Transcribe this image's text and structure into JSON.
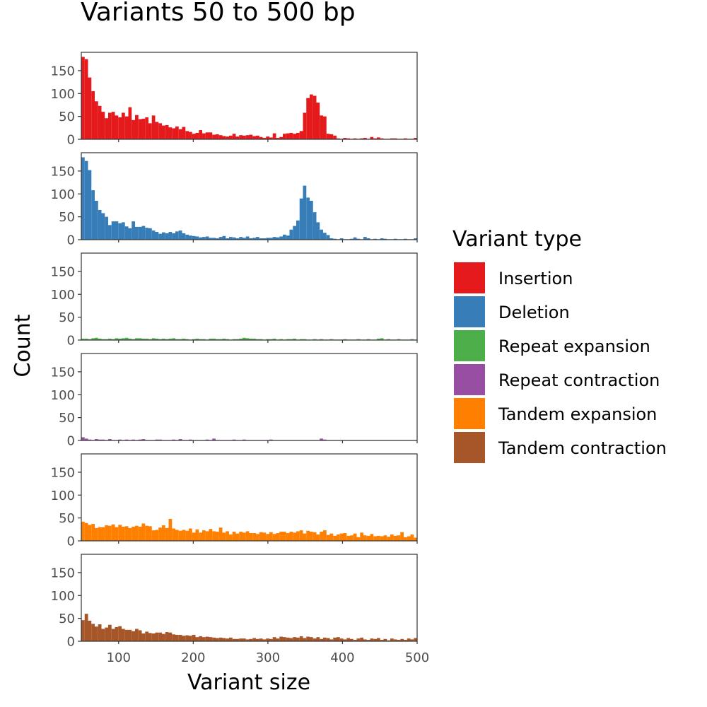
{
  "chart_data": {
    "type": "bar",
    "title": "Variants 50 to 500 bp",
    "xlabel": "Variant size",
    "ylabel": "Count",
    "xlim": [
      50,
      500
    ],
    "ylim": [
      0,
      190
    ],
    "x_ticks": [
      100,
      200,
      300,
      400,
      500
    ],
    "y_ticks": [
      0,
      50,
      100,
      150
    ],
    "bin_start": 50,
    "bin_width": 4.5,
    "legend": {
      "title": "Variant type",
      "position": "right"
    },
    "grid": false,
    "series": [
      {
        "name": "Insertion",
        "color": "#E41A1C",
        "values": [
          180,
          175,
          135,
          105,
          83,
          73,
          60,
          46,
          58,
          60,
          52,
          48,
          58,
          50,
          70,
          42,
          53,
          44,
          45,
          48,
          35,
          52,
          38,
          35,
          30,
          31,
          26,
          24,
          28,
          22,
          27,
          18,
          16,
          12,
          14,
          20,
          13,
          15,
          15,
          10,
          11,
          9,
          7,
          6,
          8,
          12,
          6,
          9,
          8,
          9,
          10,
          7,
          8,
          5,
          3,
          6,
          4,
          13,
          3,
          5,
          12,
          13,
          14,
          12,
          14,
          18,
          58,
          90,
          98,
          95,
          80,
          52,
          50,
          12,
          11,
          8,
          2,
          1,
          3,
          2,
          1,
          2,
          1,
          2,
          3,
          1,
          5,
          2,
          4,
          2,
          1,
          1,
          2,
          2,
          1,
          1,
          2,
          1,
          1,
          3,
          2,
          1
        ]
      },
      {
        "name": "Deletion",
        "color": "#377EB8",
        "values": [
          180,
          172,
          152,
          108,
          85,
          65,
          58,
          50,
          32,
          40,
          40,
          36,
          38,
          29,
          25,
          40,
          28,
          28,
          30,
          26,
          25,
          20,
          17,
          13,
          16,
          14,
          17,
          14,
          18,
          20,
          14,
          11,
          9,
          8,
          7,
          5,
          6,
          7,
          4,
          4,
          3,
          6,
          8,
          3,
          6,
          5,
          3,
          6,
          4,
          7,
          3,
          4,
          6,
          3,
          3,
          4,
          4,
          6,
          5,
          7,
          11,
          9,
          22,
          30,
          42,
          90,
          118,
          92,
          85,
          60,
          38,
          22,
          15,
          10,
          3,
          2,
          1,
          3,
          1,
          1,
          2,
          5,
          2,
          1,
          6,
          3,
          1,
          2,
          1,
          3,
          2,
          1,
          1,
          2,
          1,
          1,
          2,
          1,
          1,
          3,
          1,
          1
        ]
      },
      {
        "name": "Repeat expansion",
        "color": "#4DAF4A",
        "values": [
          3,
          3,
          2,
          4,
          5,
          3,
          2,
          2,
          3,
          2,
          4,
          3,
          4,
          5,
          3,
          2,
          4,
          4,
          3,
          3,
          2,
          4,
          3,
          2,
          3,
          2,
          3,
          4,
          2,
          2,
          3,
          2,
          1,
          2,
          3,
          2,
          2,
          1,
          3,
          3,
          2,
          2,
          3,
          2,
          1,
          2,
          2,
          3,
          5,
          4,
          3,
          3,
          2,
          2,
          1,
          2,
          2,
          3,
          1,
          2,
          1,
          2,
          2,
          3,
          1,
          2,
          2,
          1,
          1,
          2,
          1,
          2,
          1,
          1,
          2,
          1,
          1,
          1,
          2,
          1,
          1,
          1,
          2,
          1,
          1,
          2,
          1,
          1,
          3,
          4,
          1,
          2,
          1,
          1,
          2,
          1,
          1,
          1,
          2,
          1,
          3,
          1
        ]
      },
      {
        "name": "Repeat contraction",
        "color": "#984EA3",
        "values": [
          7,
          4,
          2,
          1,
          3,
          2,
          2,
          1,
          3,
          1,
          1,
          2,
          1,
          2,
          1,
          2,
          1,
          2,
          3,
          1,
          1,
          1,
          2,
          2,
          1,
          1,
          1,
          2,
          1,
          3,
          1,
          1,
          2,
          1,
          1,
          1,
          1,
          2,
          1,
          4,
          1,
          1,
          1,
          1,
          1,
          2,
          1,
          1,
          2,
          1,
          1,
          1,
          1,
          1,
          1,
          1,
          2,
          1,
          1,
          1,
          1,
          1,
          1,
          1,
          1,
          1,
          1,
          1,
          1,
          1,
          1,
          4,
          2,
          1,
          1,
          1,
          1,
          1,
          1,
          1,
          1,
          1,
          1,
          1,
          1,
          1,
          1,
          1,
          1,
          1,
          1,
          1,
          1,
          1,
          1,
          1,
          1,
          1,
          1,
          1,
          1,
          1
        ]
      },
      {
        "name": "Tandem expansion",
        "color": "#FF7F00",
        "values": [
          42,
          39,
          35,
          37,
          28,
          30,
          30,
          34,
          33,
          36,
          30,
          35,
          31,
          32,
          28,
          31,
          33,
          31,
          38,
          33,
          32,
          23,
          24,
          29,
          34,
          28,
          48,
          27,
          24,
          22,
          24,
          22,
          27,
          18,
          25,
          18,
          23,
          21,
          26,
          21,
          20,
          29,
          18,
          21,
          14,
          20,
          16,
          20,
          18,
          21,
          17,
          17,
          15,
          19,
          18,
          15,
          19,
          15,
          17,
          20,
          20,
          17,
          20,
          18,
          21,
          23,
          16,
          22,
          20,
          19,
          14,
          20,
          23,
          13,
          16,
          11,
          14,
          16,
          17,
          11,
          12,
          16,
          8,
          18,
          12,
          11,
          15,
          10,
          11,
          10,
          12,
          9,
          14,
          11,
          12,
          19,
          8,
          10,
          14,
          7,
          10,
          8
        ]
      },
      {
        "name": "Tandem contraction",
        "color": "#A65628",
        "values": [
          46,
          60,
          45,
          38,
          32,
          37,
          27,
          30,
          36,
          27,
          31,
          33,
          27,
          25,
          25,
          22,
          27,
          24,
          17,
          21,
          18,
          17,
          19,
          19,
          16,
          20,
          19,
          15,
          14,
          14,
          12,
          13,
          12,
          14,
          9,
          11,
          9,
          10,
          9,
          8,
          7,
          8,
          7,
          6,
          8,
          5,
          5,
          6,
          6,
          4,
          5,
          7,
          5,
          6,
          4,
          6,
          5,
          9,
          6,
          10,
          9,
          8,
          7,
          9,
          8,
          11,
          7,
          10,
          9,
          6,
          9,
          5,
          8,
          7,
          4,
          8,
          9,
          6,
          4,
          7,
          5,
          3,
          6,
          8,
          4,
          3,
          6,
          5,
          7,
          3,
          5,
          2,
          6,
          4,
          3,
          5,
          3,
          6,
          4,
          7,
          3,
          4
        ]
      }
    ]
  }
}
